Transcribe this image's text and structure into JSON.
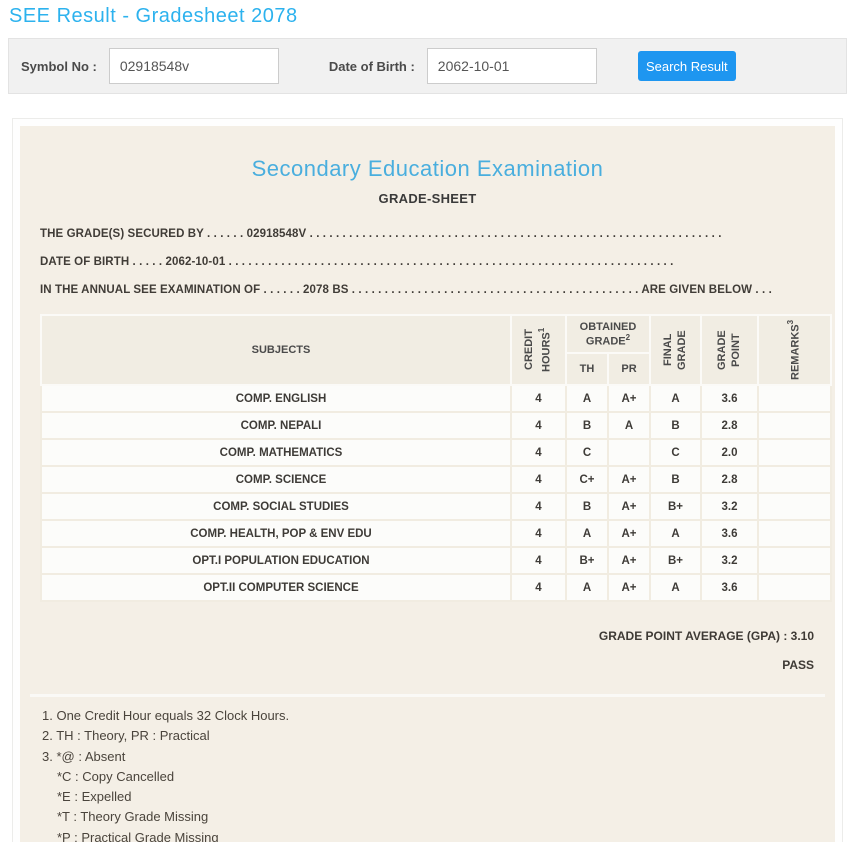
{
  "page": {
    "title": "SEE Result - Gradesheet 2078"
  },
  "colors": {
    "accent_title": "#2cb2ee",
    "heading_blue": "#49aede",
    "button_blue": "#1e96f0",
    "panel_beige": "#f4efe6"
  },
  "search": {
    "symbol_label": "Symbol No :",
    "symbol_value": "02918548v",
    "dob_label": "Date of Birth :",
    "dob_value": "2062-10-01",
    "button_label": "Search Result"
  },
  "sheet": {
    "heading": "Secondary Education Examination",
    "subheading": "GRADE-SHEET",
    "line1": "THE GRADE(S) SECURED BY . . . . . . 02918548V . . . . . . . . . . . . . . . . . . . . . . . . . . . . . . . . . . . . . . . . . . . . . . . . . . . . . . . . . . . . . . .",
    "line2": "DATE OF BIRTH . . . . . 2062-10-01 . . . . . . . . . . . . . . . . . . . . . . . . . . . . . . . . . . . . . . . . . . . . . . . . . . . . . . . . . . . . . . . . . . . .",
    "line3": "IN THE ANNUAL SEE EXAMINATION OF . . . . . . 2078 BS . . . . . . . . . . . . . . . . . . . . . . . . . . . . . . . . . . . . . . . . . . . . ARE GIVEN BELOW . . .",
    "gpa_line": "GRADE POINT AVERAGE (GPA) : 3.10",
    "result": "PASS"
  },
  "table": {
    "headers": {
      "subjects": "SUBJECTS",
      "credit_hours": "CREDIT HOURS",
      "credit_sup": "1",
      "obtained": "OBTAINED GRADE",
      "obtained_sup": "2",
      "th": "TH",
      "pr": "PR",
      "final_grade": "FINAL GRADE",
      "grade_point": "GRADE POINT",
      "remarks": "REMARKS",
      "remarks_sup": "3"
    },
    "rows": [
      {
        "subject": "COMP. ENGLISH",
        "credit": "4",
        "th": "A",
        "pr": "A+",
        "final": "A",
        "point": "3.6",
        "remarks": ""
      },
      {
        "subject": "COMP. NEPALI",
        "credit": "4",
        "th": "B",
        "pr": "A",
        "final": "B",
        "point": "2.8",
        "remarks": ""
      },
      {
        "subject": "COMP. MATHEMATICS",
        "credit": "4",
        "th": "C",
        "pr": "",
        "final": "C",
        "point": "2.0",
        "remarks": ""
      },
      {
        "subject": "COMP. SCIENCE",
        "credit": "4",
        "th": "C+",
        "pr": "A+",
        "final": "B",
        "point": "2.8",
        "remarks": ""
      },
      {
        "subject": "COMP. SOCIAL STUDIES",
        "credit": "4",
        "th": "B",
        "pr": "A+",
        "final": "B+",
        "point": "3.2",
        "remarks": ""
      },
      {
        "subject": "COMP. HEALTH, POP & ENV EDU",
        "credit": "4",
        "th": "A",
        "pr": "A+",
        "final": "A",
        "point": "3.6",
        "remarks": ""
      },
      {
        "subject": "OPT.I POPULATION EDUCATION",
        "credit": "4",
        "th": "B+",
        "pr": "A+",
        "final": "B+",
        "point": "3.2",
        "remarks": ""
      },
      {
        "subject": "OPT.II COMPUTER SCIENCE",
        "credit": "4",
        "th": "A",
        "pr": "A+",
        "final": "A",
        "point": "3.6",
        "remarks": ""
      }
    ]
  },
  "footnotes": [
    "1. One Credit Hour equals 32 Clock Hours.",
    "2. TH : Theory, PR : Practical",
    "3. *@ : Absent",
    "*C : Copy Cancelled",
    "*E : Expelled",
    "*T : Theory Grade Missing",
    "*P : Practical Grade Missing"
  ]
}
